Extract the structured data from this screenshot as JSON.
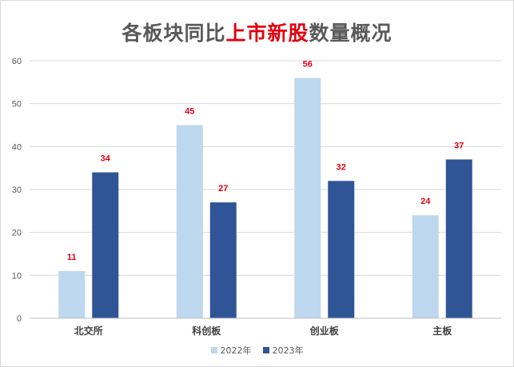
{
  "title": {
    "part1": "各板块同比",
    "part2": "上市新股",
    "part3": "数量概况"
  },
  "colors": {
    "s2022": "#bdd7ee",
    "s2023": "#2f5597",
    "label": "#e2000f",
    "grid": "#d9d9d9",
    "axis_text": "#595959"
  },
  "chart_data": {
    "type": "bar",
    "title": "各板块同比上市新股数量概况",
    "categories": [
      "北交所",
      "科创板",
      "创业板",
      "主板"
    ],
    "series": [
      {
        "name": "2022年",
        "values": [
          11,
          45,
          56,
          24
        ]
      },
      {
        "name": "2023年",
        "values": [
          34,
          27,
          32,
          37
        ]
      }
    ],
    "ylim": [
      0,
      60
    ],
    "yticks": [
      "0",
      "10",
      "20",
      "30",
      "40",
      "50",
      "60"
    ],
    "grid": true,
    "legend": "bottom",
    "xlabel": "",
    "ylabel": ""
  }
}
